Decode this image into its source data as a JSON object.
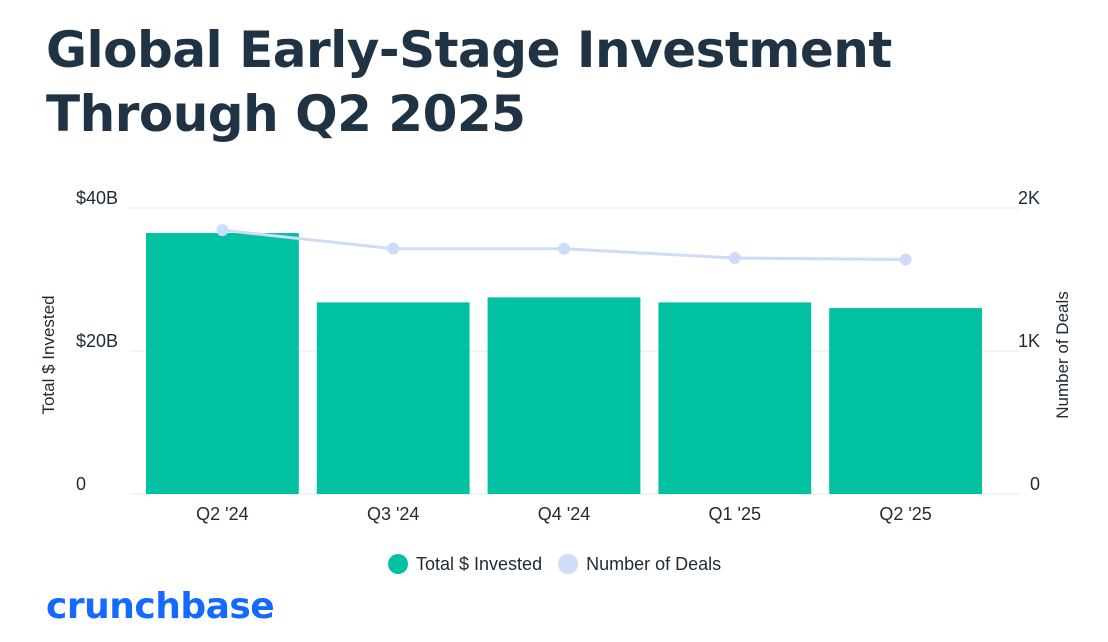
{
  "title": "Global Early-Stage Investment Through Q2 2025",
  "colors": {
    "bars": "#00c2a2",
    "line": "#cfdcf7",
    "title": "#1f3344",
    "brand": "#146aff"
  },
  "legend": {
    "bars_label": "Total $ Invested",
    "line_label": "Number of Deals"
  },
  "brand": "crunchbase",
  "chart_data": {
    "type": "bar",
    "categories": [
      "Q2 '24",
      "Q3 '24",
      "Q4 '24",
      "Q1 '25",
      "Q2 '25"
    ],
    "series": [
      {
        "name": "Total $ Invested",
        "type": "bar",
        "axis": "left",
        "values": [
          36.5,
          26.8,
          27.5,
          26.8,
          26.0
        ]
      },
      {
        "name": "Number of Deals",
        "type": "line",
        "axis": "right",
        "values": [
          1845,
          1715,
          1715,
          1650,
          1640
        ]
      }
    ],
    "y_left": {
      "label": "Total $ Invested",
      "ticks": [
        "0",
        "$20B",
        "$40B"
      ],
      "tick_values": [
        0,
        20,
        40
      ],
      "range": [
        0,
        40
      ]
    },
    "y_right": {
      "label": "Number of Deals",
      "ticks": [
        "0",
        "1K",
        "2K"
      ],
      "tick_values": [
        0,
        1000,
        2000
      ],
      "range": [
        0,
        2000
      ]
    },
    "grid": true,
    "legend_position": "bottom"
  }
}
